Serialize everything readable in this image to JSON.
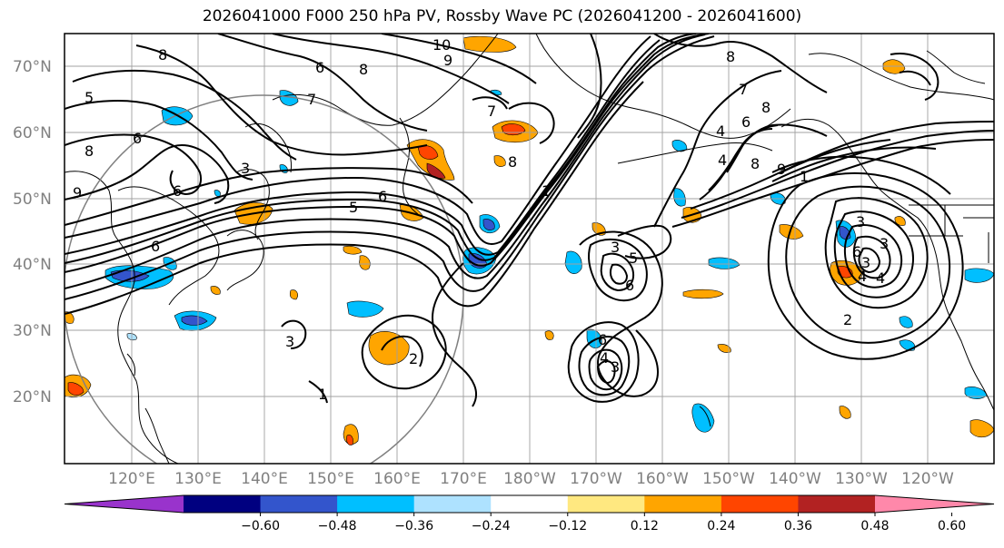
{
  "title": "2026041000 F000 250 hPa PV, Rossby Wave PC (2026041200 - 2026041600)",
  "lat_labels": [
    "70°N",
    "60°N",
    "50°N",
    "40°N",
    "30°N",
    "20°N"
  ],
  "lon_labels": [
    "120°E",
    "130°E",
    "140°E",
    "150°E",
    "160°E",
    "170°E",
    "180°W",
    "170°W",
    "160°W",
    "150°W",
    "140°W",
    "130°W",
    "120°W"
  ],
  "colorbar": {
    "ticks": [
      "−0.60",
      "−0.48",
      "−0.36",
      "−0.24",
      "−0.12",
      "0.12",
      "0.24",
      "0.36",
      "0.48",
      "0.60"
    ],
    "colors": [
      "#9933cc",
      "#000080",
      "#3355cc",
      "#00bfff",
      "#aee2ff",
      "#ffffff",
      "#ffe880",
      "#ffa500",
      "#ff4500",
      "#b22222",
      "#ff88aa"
    ]
  },
  "contour_labels": [
    "10",
    "9",
    "8",
    "8",
    "6",
    "5",
    "6",
    "7",
    "8",
    "9",
    "6",
    "6",
    "5",
    "3",
    "8",
    "7",
    "8",
    "8",
    "6",
    "4",
    "7",
    "6",
    "3",
    "6",
    "5",
    "3",
    "8",
    "6",
    "4",
    "9",
    "1",
    "6",
    "4",
    "3",
    "3",
    "3",
    "4",
    "4",
    "1",
    "2",
    "2",
    "1",
    "3"
  ]
}
